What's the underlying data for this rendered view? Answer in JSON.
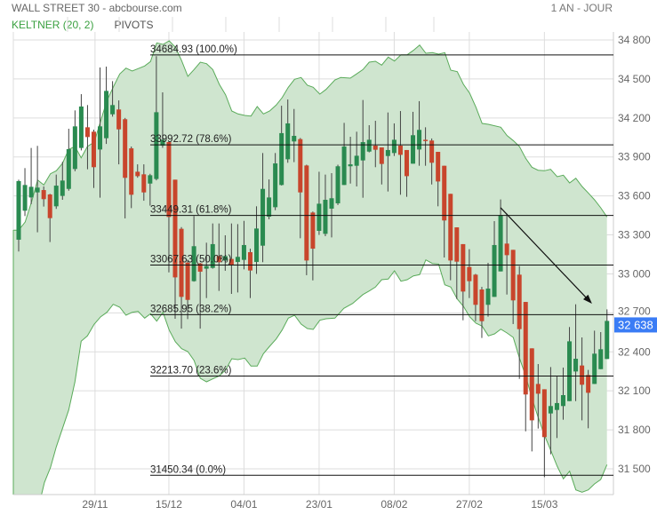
{
  "header": {
    "title": "WALL STREET 30 - abcbourse.com",
    "period": "1 AN - JOUR"
  },
  "tabs": [
    {
      "label": "KELTNER (20, 2)",
      "active": true
    },
    {
      "label": "PIVOTS",
      "active": false
    }
  ],
  "colors": {
    "up": "#2a8a50",
    "down": "#c8452c",
    "band_fill": "#cfe5cf",
    "band_line": "#5aab5a",
    "last_price_bg": "#3a7cf5",
    "grid": "#dddddd"
  },
  "last_price": "32 638",
  "chart_data": {
    "type": "candlestick",
    "title": "",
    "indicator": "Keltner (20, 2)",
    "ylim": [
      31302,
      34861
    ],
    "yticks": [
      "31 500",
      "31 800",
      "32 100",
      "32 400",
      "32 700",
      "33 000",
      "33 300",
      "33 600",
      "33 900",
      "34 200",
      "34 500",
      "34 800"
    ],
    "ytick_values": [
      31500,
      31800,
      32100,
      32400,
      32700,
      33000,
      33300,
      33600,
      33900,
      34200,
      34500,
      34800
    ],
    "xticks": [
      {
        "label": "29/11",
        "index": 12.2
      },
      {
        "label": "15/12",
        "index": 24
      },
      {
        "label": "04/01",
        "index": 36
      },
      {
        "label": "23/01",
        "index": 48
      },
      {
        "label": "08/02",
        "index": 60
      },
      {
        "label": "27/02",
        "index": 72
      },
      {
        "label": "15/03",
        "index": 84
      }
    ],
    "grid": true,
    "fib_levels": [
      {
        "value": 34684.93,
        "label": "34684.93  (100.0%)"
      },
      {
        "value": 33992.72,
        "label": "33992.72  (78.6%)"
      },
      {
        "value": 33449.31,
        "label": "33449.31  (61.8%)"
      },
      {
        "value": 33067.63,
        "label": "33067.63  (50.0%)"
      },
      {
        "value": 32685.95,
        "label": "32685.95  (38.2%)"
      },
      {
        "value": 32213.7,
        "label": "32213.70  (23.6%)"
      },
      {
        "value": 31450.34,
        "label": "31450.34  (0.0%)"
      }
    ],
    "trend_arrow": {
      "from": {
        "index": 77,
        "price": 33509
      },
      "to": {
        "index": 91.6,
        "price": 32771
      }
    },
    "ohlc": [
      [
        33263,
        33725,
        33172,
        33714
      ],
      [
        33486,
        33814,
        33445,
        33684
      ],
      [
        33588,
        33969,
        33536,
        33670
      ],
      [
        33627,
        33985,
        33320,
        33664
      ],
      [
        33645,
        33673,
        33518,
        33575
      ],
      [
        33611,
        33616,
        33245,
        33429
      ],
      [
        33520,
        33764,
        33500,
        33679
      ],
      [
        33600,
        33862,
        33570,
        33718
      ],
      [
        33654,
        34117,
        33640,
        33960
      ],
      [
        33807,
        34258,
        33790,
        34135
      ],
      [
        33969,
        34383,
        33950,
        34288
      ],
      [
        34128,
        34299,
        33805,
        34053
      ],
      [
        34094,
        34110,
        33661,
        33821
      ],
      [
        33957,
        34588,
        33586,
        34135
      ],
      [
        34044,
        34595,
        34000,
        34408
      ],
      [
        34228,
        34483,
        34210,
        34299
      ],
      [
        34265,
        34335,
        33843,
        34112
      ],
      [
        34190,
        34200,
        33427,
        33739
      ],
      [
        33966,
        33980,
        33506,
        33609
      ],
      [
        33786,
        33843,
        33740,
        33752
      ],
      [
        33766,
        33843,
        33563,
        33627
      ],
      [
        33695,
        33770,
        33525,
        33759
      ],
      [
        33730,
        34675,
        33720,
        34244
      ],
      [
        33987,
        34397,
        33970,
        34032
      ],
      [
        34014,
        34020,
        33012,
        33438
      ],
      [
        33725,
        33725,
        32655,
        32973
      ],
      [
        33347,
        33360,
        32579,
        32823
      ],
      [
        33087,
        33110,
        32652,
        32800
      ],
      [
        32944,
        33445,
        32940,
        33213
      ],
      [
        33080,
        33085,
        32579,
        33017
      ],
      [
        33040,
        33240,
        32814,
        33060
      ],
      [
        33046,
        33388,
        33040,
        33229
      ],
      [
        33137,
        33388,
        32869,
        33090
      ],
      [
        33103,
        33297,
        33024,
        33137
      ],
      [
        33115,
        33388,
        32846,
        33070
      ],
      [
        33092,
        33383,
        32857,
        33131
      ],
      [
        33108,
        33408,
        33035,
        33222
      ],
      [
        33167,
        33194,
        32814,
        33026
      ],
      [
        33092,
        33520,
        33000,
        33349
      ],
      [
        33217,
        33930,
        33090,
        33654
      ],
      [
        33440,
        33727,
        33420,
        33588
      ],
      [
        33513,
        33930,
        33490,
        33850
      ],
      [
        33684,
        34294,
        33680,
        34083
      ],
      [
        33882,
        34342,
        33855,
        34158
      ],
      [
        34019,
        34269,
        33860,
        34062
      ],
      [
        34037,
        34046,
        33274,
        33627
      ],
      [
        33834,
        33840,
        32990,
        33103
      ],
      [
        33472,
        33480,
        32950,
        33194
      ],
      [
        33331,
        33786,
        33300,
        33540
      ],
      [
        33308,
        33764,
        33290,
        33570
      ],
      [
        33502,
        33775,
        33281,
        33582
      ],
      [
        33543,
        33840,
        33530,
        33828
      ],
      [
        33684,
        34162,
        33684,
        33980
      ],
      [
        33828,
        34055,
        33695,
        33843
      ],
      [
        33832,
        34094,
        33673,
        33909
      ],
      [
        33873,
        34338,
        33586,
        34014
      ],
      [
        33941,
        34144,
        33935,
        34032
      ],
      [
        33987,
        34178,
        33821,
        33955
      ],
      [
        33973,
        33973,
        33688,
        33846
      ],
      [
        33907,
        34242,
        33634,
        33953
      ],
      [
        33930,
        34158,
        33907,
        34032
      ],
      [
        33987,
        34253,
        33609,
        33916
      ],
      [
        33953,
        33953,
        33593,
        33752
      ],
      [
        33848,
        34247,
        33848,
        34067
      ],
      [
        33957,
        34329,
        33832,
        34108
      ],
      [
        34032,
        34128,
        33832,
        34023
      ],
      [
        34026,
        34042,
        33688,
        33855
      ],
      [
        33939,
        33939,
        33520,
        33711
      ],
      [
        33832,
        33832,
        33126,
        33411
      ],
      [
        33616,
        33616,
        32951,
        33103
      ],
      [
        33358,
        33358,
        32807,
        33094
      ],
      [
        33229,
        33229,
        32643,
        32864
      ],
      [
        33053,
        33190,
        32814,
        32944
      ],
      [
        32994,
        33000,
        32636,
        32762
      ],
      [
        32880,
        32900,
        32507,
        32636
      ],
      [
        32762,
        33085,
        32671,
        32887
      ],
      [
        32823,
        33406,
        32823,
        33222
      ],
      [
        33019,
        33573,
        33019,
        33452
      ],
      [
        33233,
        33463,
        32841,
        33144
      ],
      [
        33185,
        33185,
        32614,
        32796
      ],
      [
        32994,
        33060,
        32192,
        32575
      ],
      [
        32784,
        32784,
        31789,
        32072
      ],
      [
        32427,
        32427,
        31634,
        31873
      ],
      [
        32153,
        32306,
        31810,
        32078
      ],
      [
        32112,
        32112,
        31436,
        31744
      ],
      [
        31926,
        32283,
        31612,
        31983
      ],
      [
        31953,
        32210,
        31737,
        32006
      ],
      [
        31983,
        32279,
        31878,
        32067
      ],
      [
        32021,
        32591,
        32021,
        32481
      ],
      [
        32249,
        32766,
        32021,
        32347
      ],
      [
        32295,
        32511,
        31873,
        32147
      ],
      [
        32222,
        32261,
        31812,
        32085
      ],
      [
        32153,
        32563,
        32153,
        32386
      ],
      [
        32267,
        32552,
        32267,
        32420
      ],
      [
        32345,
        32727,
        32345,
        32638
      ]
    ]
  }
}
